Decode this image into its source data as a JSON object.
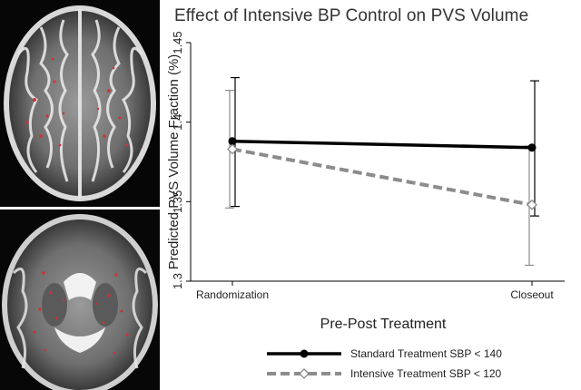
{
  "figure": {
    "panel_images": [
      {
        "description_icon": "brain-mri-axial-upper-icon"
      },
      {
        "description_icon": "brain-mri-axial-basal-ganglia-icon"
      }
    ]
  },
  "chart_data": {
    "type": "line",
    "title": "Effect of Intensive BP Control on PVS Volume",
    "xlabel": "Pre-Post Treatment",
    "ylabel": "Predicted PVS Volume Fraction (%)",
    "categories": [
      "Randomization",
      "Closeout"
    ],
    "ylim": [
      1.3,
      1.45
    ],
    "yticks": [
      "1.3",
      "1.35",
      "1.4",
      "1.45"
    ],
    "grid": false,
    "legend_position": "bottom",
    "series": [
      {
        "name": "Standard Treatment SBP < 140",
        "values": [
          1.388,
          1.384
        ],
        "ci_low": [
          1.347,
          1.341
        ],
        "ci_high": [
          1.428,
          1.426
        ],
        "color": "#000000",
        "style": "solid",
        "marker": "circle"
      },
      {
        "name": "Intensive Treatment SBP < 120",
        "values": [
          1.383,
          1.348
        ],
        "ci_low": [
          1.346,
          1.31
        ],
        "ci_high": [
          1.42,
          1.385
        ],
        "color": "#8c8c8c",
        "style": "dashed",
        "marker": "diamond"
      }
    ]
  }
}
